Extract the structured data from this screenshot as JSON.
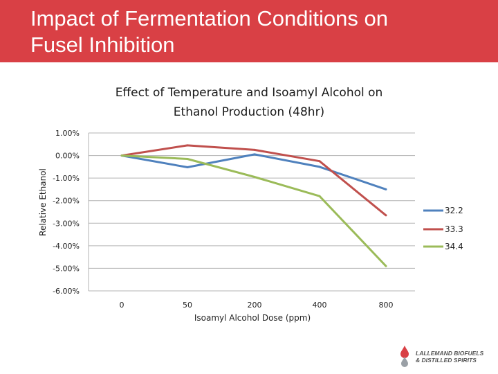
{
  "slide": {
    "title_line1": "Impact of Fermentation Conditions on",
    "title_line2": "Fusel Inhibition",
    "banner_color": "#d94045"
  },
  "logo": {
    "line1": "LALLEMAND BIOFUELS",
    "line2": "& DISTILLED SPIRITS",
    "drop_colors": [
      "#d94045",
      "#9aa0a6"
    ]
  },
  "chart_data": {
    "type": "line",
    "title_line1": "Effect of Temperature and Isoamyl Alcohol on",
    "title_line2": "Ethanol Production (48hr)",
    "xlabel": "Isoamyl Alcohol Dose (ppm)",
    "ylabel": "Relative Ethanol",
    "categories": [
      "0",
      "50",
      "200",
      "400",
      "800"
    ],
    "ylim": [
      -6,
      1
    ],
    "yticks": [
      "1.00%",
      "0.00%",
      "-1.00%",
      "-2.00%",
      "-3.00%",
      "-4.00%",
      "-5.00%",
      "-6.00%"
    ],
    "grid": true,
    "legend_position": "right",
    "series": [
      {
        "name": "32.2",
        "color": "#4f81bd",
        "values": [
          0.0,
          -0.52,
          0.05,
          -0.5,
          -1.5
        ]
      },
      {
        "name": "33.3",
        "color": "#c0504d",
        "values": [
          0.0,
          0.45,
          0.25,
          -0.25,
          -2.65
        ]
      },
      {
        "name": "34.4",
        "color": "#9bbb59",
        "values": [
          0.0,
          -0.15,
          -0.95,
          -1.8,
          -4.9
        ]
      }
    ]
  }
}
